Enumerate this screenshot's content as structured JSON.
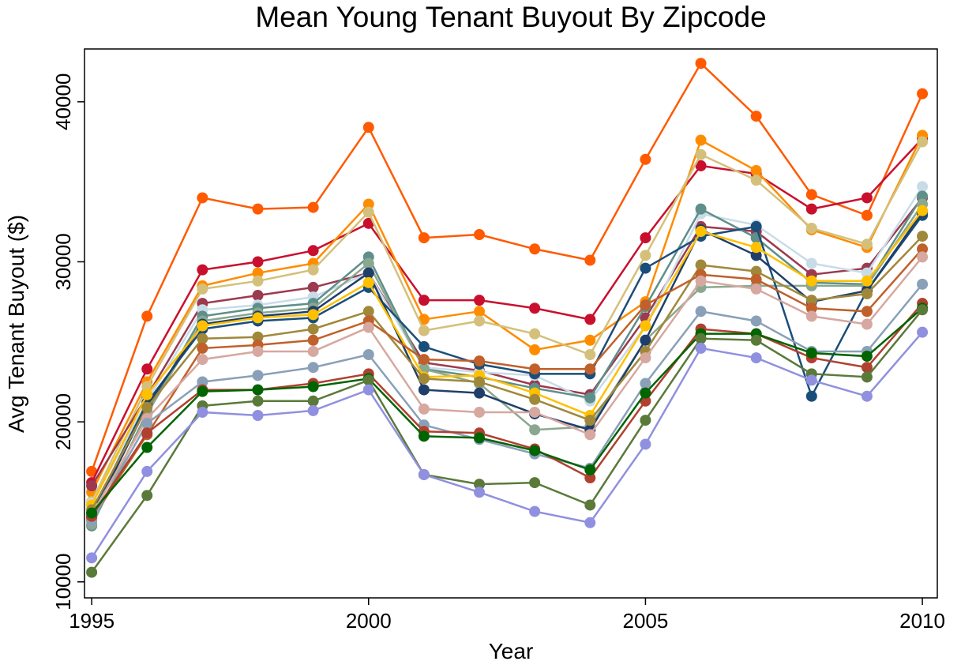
{
  "chart_data": {
    "type": "line",
    "title": "Mean Young Tenant Buyout By Zipcode",
    "x_label": "Year",
    "y_label": "Avg Tenant Buyout ($)",
    "x": [
      1995,
      1996,
      1997,
      1998,
      1999,
      2000,
      2001,
      2002,
      2003,
      2004,
      2005,
      2006,
      2007,
      2008,
      2009,
      2010
    ],
    "xlim": [
      1994.87,
      2010.27
    ],
    "xticks": [
      1995,
      2000,
      2005,
      2010
    ],
    "ylim": [
      9000,
      43300
    ],
    "yticks": [
      10000,
      20000,
      30000,
      40000
    ],
    "grid": false,
    "series": [
      {
        "color": "#ff5a00",
        "values": [
          16900,
          26600,
          34000,
          33300,
          33400,
          38400,
          31500,
          31700,
          30800,
          30100,
          36400,
          42400,
          39100,
          34200,
          32900,
          40500
        ]
      },
      {
        "color": "#c8102e",
        "values": [
          16200,
          23300,
          29500,
          30000,
          30700,
          32400,
          27600,
          27600,
          27100,
          26400,
          31500,
          36000,
          35500,
          33300,
          34000,
          37700
        ]
      },
      {
        "color": "#ff8c00",
        "values": [
          15600,
          22500,
          28500,
          29300,
          29900,
          33600,
          26400,
          26900,
          24500,
          25100,
          27500,
          37600,
          35700,
          32000,
          30900,
          37900
        ]
      },
      {
        "color": "#d4c07a",
        "values": [
          15000,
          22200,
          28300,
          28800,
          29500,
          33100,
          25700,
          26300,
          25500,
          24200,
          30400,
          36700,
          35100,
          32100,
          31100,
          37500
        ]
      },
      {
        "color": "#9c3a4f",
        "values": [
          16000,
          21600,
          27400,
          27900,
          28400,
          29300,
          23700,
          23200,
          22300,
          21700,
          26500,
          32200,
          31900,
          29200,
          29600,
          34000
        ]
      },
      {
        "color": "#c8dce8",
        "values": [
          14900,
          21300,
          27000,
          27300,
          27800,
          29300,
          23400,
          23100,
          22900,
          21300,
          26000,
          33000,
          32300,
          29900,
          29300,
          34700
        ]
      },
      {
        "color": "#5f8f8a",
        "values": [
          13500,
          20600,
          26600,
          27100,
          27400,
          30300,
          23300,
          22800,
          22100,
          21500,
          27200,
          33300,
          31500,
          28700,
          28600,
          34100
        ]
      },
      {
        "color": "#8aa890",
        "values": [
          13600,
          20500,
          26300,
          26800,
          27100,
          29900,
          23300,
          22400,
          19500,
          19700,
          25100,
          28400,
          28500,
          28500,
          28500,
          33600
        ]
      },
      {
        "color": "#1a4e7a",
        "values": [
          14300,
          21200,
          25800,
          26300,
          26500,
          28400,
          24700,
          23600,
          23000,
          23000,
          29600,
          31600,
          32200,
          21600,
          28200,
          32900
        ]
      },
      {
        "color": "#1f3f6a",
        "values": [
          14000,
          21000,
          26100,
          26600,
          26900,
          29300,
          22000,
          21800,
          20500,
          19500,
          25100,
          32000,
          30400,
          27500,
          28200,
          33100
        ]
      },
      {
        "color": "#ffc000",
        "values": [
          14800,
          21700,
          26000,
          26500,
          26700,
          28700,
          22800,
          22900,
          21800,
          20400,
          26000,
          31900,
          30900,
          28800,
          28800,
          33200
        ]
      },
      {
        "color": "#a0883a",
        "values": [
          14500,
          20900,
          25200,
          25300,
          25800,
          26900,
          22700,
          22500,
          21400,
          20100,
          24400,
          29800,
          29400,
          27600,
          28000,
          31600
        ]
      },
      {
        "color": "#c0602a",
        "values": [
          13900,
          19200,
          24600,
          24800,
          25100,
          26300,
          23900,
          23800,
          23300,
          23300,
          27300,
          29200,
          28900,
          27100,
          26900,
          30800
        ]
      },
      {
        "color": "#d6a8a0",
        "values": [
          14200,
          20200,
          23900,
          24400,
          24400,
          25900,
          20800,
          20600,
          20600,
          19200,
          24000,
          28800,
          28300,
          26600,
          26100,
          30300
        ]
      },
      {
        "color": "#8aa0b8",
        "values": [
          13800,
          19900,
          22500,
          22900,
          23400,
          24200,
          19800,
          18900,
          18000,
          17100,
          22400,
          26900,
          26300,
          24400,
          24400,
          28600
        ]
      },
      {
        "color": "#b04030",
        "values": [
          14100,
          19300,
          22000,
          22000,
          22400,
          23000,
          19400,
          19300,
          18300,
          16500,
          21300,
          25800,
          25500,
          24000,
          23400,
          27400
        ]
      },
      {
        "color": "#006400",
        "values": [
          14300,
          18400,
          21900,
          22000,
          22200,
          22700,
          19100,
          19000,
          18200,
          17000,
          21800,
          25500,
          25500,
          24300,
          24100,
          27100
        ]
      },
      {
        "color": "#5a7a3a",
        "values": [
          10600,
          15400,
          21000,
          21300,
          21300,
          22600,
          16700,
          16100,
          16200,
          14800,
          20100,
          25200,
          25100,
          23000,
          22800,
          27000
        ]
      },
      {
        "color": "#9090e0",
        "values": [
          11500,
          16900,
          20600,
          20400,
          20700,
          22000,
          16700,
          15600,
          14400,
          13700,
          18600,
          24600,
          24000,
          22600,
          21600,
          25600
        ]
      }
    ]
  }
}
